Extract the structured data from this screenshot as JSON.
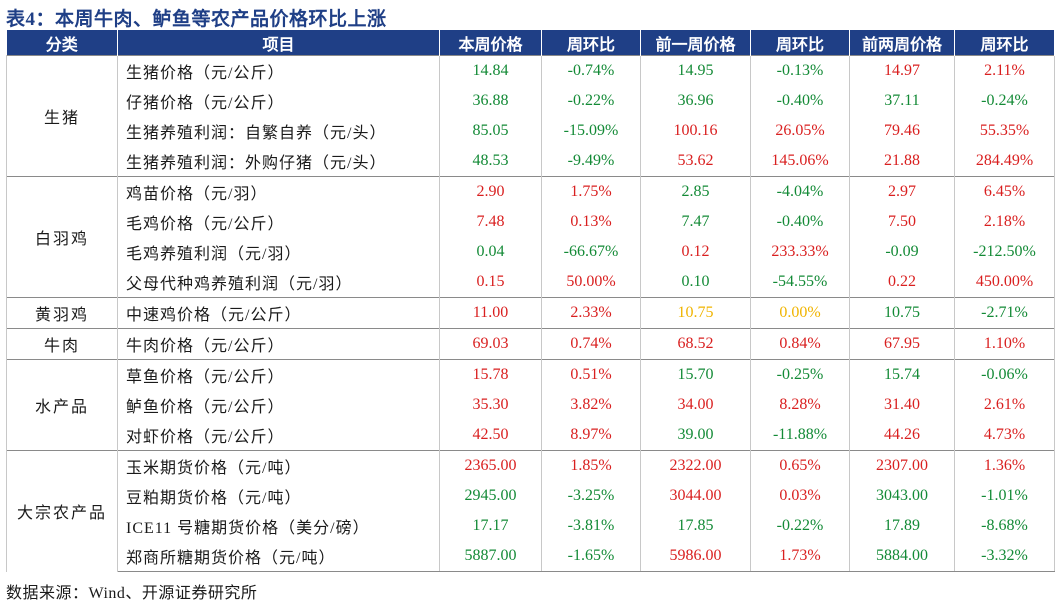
{
  "title": "表4：本周牛肉、鲈鱼等农产品价格环比上涨",
  "headers": [
    "分类",
    "项目",
    "本周价格",
    "周环比",
    "前一周价格",
    "周环比",
    "前两周价格",
    "周环比"
  ],
  "colors": {
    "header_bg": "#1f3f86",
    "up": "#d91f1f",
    "down": "#138a36",
    "flat": "#f0b400"
  },
  "groups": [
    {
      "category": "生猪",
      "rows": [
        {
          "item": "生猪价格（元/公斤）",
          "v": [
            "14.84",
            "-0.74%",
            "14.95",
            "-0.13%",
            "14.97",
            "2.11%"
          ],
          "c": [
            "g",
            "g",
            "g",
            "g",
            "r",
            "r"
          ]
        },
        {
          "item": "仔猪价格（元/公斤）",
          "v": [
            "36.88",
            "-0.22%",
            "36.96",
            "-0.40%",
            "37.11",
            "-0.24%"
          ],
          "c": [
            "g",
            "g",
            "g",
            "g",
            "g",
            "g"
          ]
        },
        {
          "item": "生猪养殖利润：自繁自养（元/头）",
          "v": [
            "85.05",
            "-15.09%",
            "100.16",
            "26.05%",
            "79.46",
            "55.35%"
          ],
          "c": [
            "g",
            "g",
            "r",
            "r",
            "r",
            "r"
          ]
        },
        {
          "item": "生猪养殖利润：外购仔猪（元/头）",
          "v": [
            "48.53",
            "-9.49%",
            "53.62",
            "145.06%",
            "21.88",
            "284.49%"
          ],
          "c": [
            "g",
            "g",
            "r",
            "r",
            "r",
            "r"
          ]
        }
      ]
    },
    {
      "category": "白羽鸡",
      "rows": [
        {
          "item": "鸡苗价格（元/羽）",
          "v": [
            "2.90",
            "1.75%",
            "2.85",
            "-4.04%",
            "2.97",
            "6.45%"
          ],
          "c": [
            "r",
            "r",
            "g",
            "g",
            "r",
            "r"
          ]
        },
        {
          "item": "毛鸡价格（元/公斤）",
          "v": [
            "7.48",
            "0.13%",
            "7.47",
            "-0.40%",
            "7.50",
            "2.18%"
          ],
          "c": [
            "r",
            "r",
            "g",
            "g",
            "r",
            "r"
          ]
        },
        {
          "item": "毛鸡养殖利润（元/羽）",
          "v": [
            "0.04",
            "-66.67%",
            "0.12",
            "233.33%",
            "-0.09",
            "-212.50%"
          ],
          "c": [
            "g",
            "g",
            "r",
            "r",
            "g",
            "g"
          ]
        },
        {
          "item": "父母代种鸡养殖利润（元/羽）",
          "v": [
            "0.15",
            "50.00%",
            "0.10",
            "-54.55%",
            "0.22",
            "450.00%"
          ],
          "c": [
            "r",
            "r",
            "g",
            "g",
            "r",
            "r"
          ]
        }
      ]
    },
    {
      "category": "黄羽鸡",
      "rows": [
        {
          "item": "中速鸡价格（元/公斤）",
          "v": [
            "11.00",
            "2.33%",
            "10.75",
            "0.00%",
            "10.75",
            "-2.71%"
          ],
          "c": [
            "r",
            "r",
            "y",
            "y",
            "g",
            "g"
          ]
        }
      ]
    },
    {
      "category": "牛肉",
      "rows": [
        {
          "item": "牛肉价格（元/公斤）",
          "v": [
            "69.03",
            "0.74%",
            "68.52",
            "0.84%",
            "67.95",
            "1.10%"
          ],
          "c": [
            "r",
            "r",
            "r",
            "r",
            "r",
            "r"
          ]
        }
      ]
    },
    {
      "category": "水产品",
      "rows": [
        {
          "item": "草鱼价格（元/公斤）",
          "v": [
            "15.78",
            "0.51%",
            "15.70",
            "-0.25%",
            "15.74",
            "-0.06%"
          ],
          "c": [
            "r",
            "r",
            "g",
            "g",
            "g",
            "g"
          ]
        },
        {
          "item": "鲈鱼价格（元/公斤）",
          "v": [
            "35.30",
            "3.82%",
            "34.00",
            "8.28%",
            "31.40",
            "2.61%"
          ],
          "c": [
            "r",
            "r",
            "r",
            "r",
            "r",
            "r"
          ]
        },
        {
          "item": "对虾价格（元/公斤）",
          "v": [
            "42.50",
            "8.97%",
            "39.00",
            "-11.88%",
            "44.26",
            "4.73%"
          ],
          "c": [
            "r",
            "r",
            "g",
            "g",
            "r",
            "r"
          ]
        }
      ]
    },
    {
      "category": "大宗农产品",
      "rows": [
        {
          "item": "玉米期货价格（元/吨）",
          "v": [
            "2365.00",
            "1.85%",
            "2322.00",
            "0.65%",
            "2307.00",
            "1.36%"
          ],
          "c": [
            "r",
            "r",
            "r",
            "r",
            "r",
            "r"
          ]
        },
        {
          "item": "豆粕期货价格（元/吨）",
          "v": [
            "2945.00",
            "-3.25%",
            "3044.00",
            "0.03%",
            "3043.00",
            "-1.01%"
          ],
          "c": [
            "g",
            "g",
            "r",
            "r",
            "g",
            "g"
          ]
        },
        {
          "item": "ICE11 号糖期货价格（美分/磅）",
          "v": [
            "17.17",
            "-3.81%",
            "17.85",
            "-0.22%",
            "17.89",
            "-8.68%"
          ],
          "c": [
            "g",
            "g",
            "g",
            "g",
            "g",
            "g"
          ]
        },
        {
          "item": "郑商所糖期货价格（元/吨）",
          "v": [
            "5887.00",
            "-1.65%",
            "5986.00",
            "1.73%",
            "5884.00",
            "-3.32%"
          ],
          "c": [
            "g",
            "g",
            "r",
            "r",
            "g",
            "g"
          ]
        }
      ]
    }
  ],
  "source": "数据来源：Wind、开源证券研究所"
}
